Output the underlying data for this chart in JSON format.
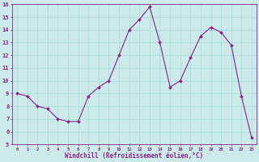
{
  "x": [
    0,
    1,
    2,
    3,
    4,
    5,
    6,
    7,
    8,
    9,
    10,
    11,
    12,
    13,
    14,
    15,
    16,
    17,
    18,
    19,
    20,
    21,
    22,
    23
  ],
  "y": [
    9,
    8.8,
    8,
    7.8,
    7,
    6.8,
    6.8,
    8.8,
    9.5,
    10,
    12,
    14,
    14.8,
    15.8,
    13,
    9.5,
    10,
    11.8,
    13.5,
    14.2,
    13.8,
    12.8,
    8.8,
    5.5
  ],
  "line_color": "#882288",
  "marker": "D",
  "marker_size": 2,
  "marker_color": "#882288",
  "background_color": "#cceaea",
  "grid_color": "#aadddd",
  "xlabel": "Windchill (Refroidissement éolien,°C)",
  "xlabel_color": "#882288",
  "tick_color": "#882288",
  "ylim": [
    5,
    16
  ],
  "xlim": [
    -0.5,
    23.5
  ],
  "yticks": [
    5,
    6,
    7,
    8,
    9,
    10,
    11,
    12,
    13,
    14,
    15,
    16
  ],
  "xticks": [
    0,
    1,
    2,
    3,
    4,
    5,
    6,
    7,
    8,
    9,
    10,
    11,
    12,
    13,
    14,
    15,
    16,
    17,
    18,
    19,
    20,
    21,
    22,
    23
  ],
  "xtick_labels": [
    "0",
    "1",
    "2",
    "3",
    "4",
    "5",
    "6",
    "7",
    "8",
    "9",
    "10",
    "11",
    "12",
    "13",
    "14",
    "15",
    "16",
    "17",
    "18",
    "19",
    "20",
    "21",
    "22",
    "23"
  ],
  "title": ""
}
